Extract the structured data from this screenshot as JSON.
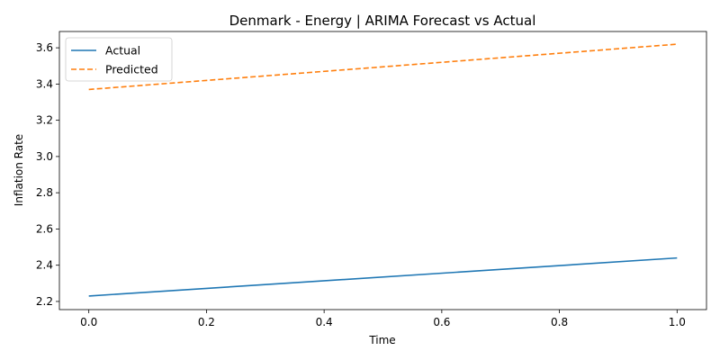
{
  "chart_data": {
    "type": "line",
    "title": "Denmark - Energy | ARIMA Forecast vs Actual",
    "xlabel": "Time",
    "ylabel": "Inflation Rate",
    "xlim": [
      -0.05,
      1.05
    ],
    "ylim": [
      2.155,
      3.69
    ],
    "x_ticks": [
      0.0,
      0.2,
      0.4,
      0.6,
      0.8,
      1.0
    ],
    "x_tick_labels": [
      "0.0",
      "0.2",
      "0.4",
      "0.6",
      "0.8",
      "1.0"
    ],
    "y_ticks": [
      2.2,
      2.4,
      2.6,
      2.8,
      3.0,
      3.2,
      3.4,
      3.6
    ],
    "y_tick_labels": [
      "2.2",
      "2.4",
      "2.6",
      "2.8",
      "3.0",
      "3.2",
      "3.4",
      "3.6"
    ],
    "grid": false,
    "legend_position": "top-left",
    "series": [
      {
        "name": "Actual",
        "x": [
          0.0,
          1.0
        ],
        "y": [
          2.23,
          2.44
        ],
        "color": "#1f77b4",
        "style": "solid"
      },
      {
        "name": "Predicted",
        "x": [
          0.0,
          1.0
        ],
        "y": [
          3.37,
          3.62
        ],
        "color": "#ff7f0e",
        "style": "dashed"
      }
    ]
  }
}
